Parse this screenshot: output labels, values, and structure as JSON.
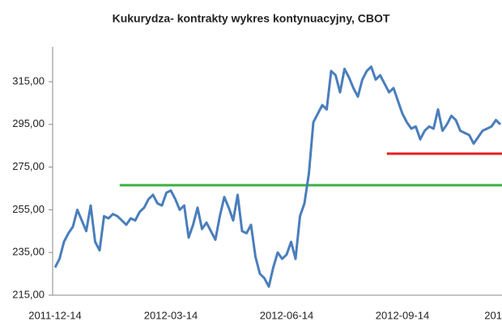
{
  "chart_data": {
    "type": "line",
    "title": "Kukurydza- kontrakty wykres kontynuacyjny, CBOT",
    "categories": [
      "2011-12-14",
      null,
      null,
      null,
      null,
      null,
      null,
      null,
      null,
      null,
      null,
      null,
      null,
      null,
      null,
      null,
      null,
      null,
      null,
      null,
      null,
      null,
      null,
      null,
      null,
      null,
      "2012-03-14",
      null,
      null,
      null,
      null,
      null,
      null,
      null,
      null,
      null,
      null,
      null,
      null,
      null,
      null,
      null,
      null,
      null,
      null,
      null,
      null,
      null,
      null,
      null,
      null,
      null,
      "2012-06-14",
      null,
      null,
      null,
      null,
      null,
      null,
      null,
      null,
      null,
      null,
      null,
      null,
      null,
      null,
      null,
      null,
      null,
      null,
      null,
      null,
      null,
      null,
      null,
      null,
      null,
      "2012-09-14",
      null,
      null,
      null,
      null,
      null,
      null,
      null,
      null,
      null,
      null,
      null,
      null,
      null,
      null,
      null,
      null,
      null,
      null,
      null,
      null,
      null,
      null,
      null,
      null,
      null,
      "201"
    ],
    "series": [
      {
        "color": "#4a7ebb",
        "values": [
          228,
          232,
          240,
          244,
          247,
          255,
          250,
          245,
          257,
          240,
          236,
          252,
          251,
          253,
          252,
          250,
          248,
          251,
          250,
          254,
          256,
          260,
          262,
          258,
          257,
          263,
          264,
          260,
          255,
          257,
          242,
          248,
          256,
          246,
          249,
          245,
          241,
          252,
          261,
          256,
          250,
          262,
          245,
          244,
          248,
          233,
          225,
          223,
          219,
          228,
          235,
          232,
          234,
          240,
          232,
          252,
          258,
          272,
          296,
          300,
          304,
          302,
          320,
          318,
          310,
          321,
          317,
          312,
          308,
          316,
          320,
          322,
          316,
          318,
          314,
          310,
          312,
          306,
          300,
          296,
          293,
          294,
          288,
          292,
          294,
          293,
          302,
          292,
          295,
          299,
          297,
          292,
          291,
          290,
          286,
          289,
          292,
          293,
          294,
          297,
          295,
          null,
          null,
          null,
          null
        ]
      }
    ],
    "reference_lines": [
      {
        "value": 266.5,
        "color": "#3cb043",
        "x_start": 14.5
      },
      {
        "value": 281.3,
        "color": "#e02020",
        "x_start": 74.5
      }
    ],
    "ylim": [
      215,
      330
    ],
    "yticks": [
      {
        "value": 215,
        "label": "215,00"
      },
      {
        "value": 235,
        "label": "235,00"
      },
      {
        "value": 255,
        "label": "255,00"
      },
      {
        "value": 275,
        "label": "275,00"
      },
      {
        "value": 295,
        "label": "295,00"
      },
      {
        "value": 315,
        "label": "315,00"
      }
    ],
    "grid": false
  }
}
